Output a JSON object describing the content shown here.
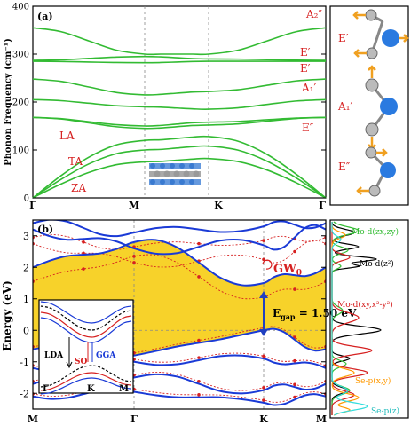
{
  "chart_data": [
    {
      "type": "line",
      "panel_label": "(a)",
      "ylabel": "Phonon Frequency (cm⁻¹)",
      "ylim": [
        0,
        400
      ],
      "yticks": [
        "0",
        "100",
        "200",
        "300",
        "400"
      ],
      "k_path": [
        "Γ",
        "M",
        "K",
        "Γ"
      ],
      "color": "#33bb33",
      "grid": false,
      "branches": [
        {
          "label": "ZA",
          "values": [
            0,
            75,
            82,
            0
          ]
        },
        {
          "label": "TA",
          "values": [
            0,
            100,
            108,
            0
          ]
        },
        {
          "label": "LA",
          "values": [
            0,
            120,
            128,
            0
          ]
        },
        {
          "label": "",
          "values": [
            168,
            145,
            152,
            168
          ]
        },
        {
          "label": "E″",
          "values": [
            168,
            150,
            158,
            168
          ]
        },
        {
          "label": "",
          "values": [
            205,
            190,
            185,
            205
          ]
        },
        {
          "label": "A₁′",
          "values": [
            248,
            215,
            222,
            248
          ]
        },
        {
          "label": "E′",
          "values": [
            285,
            282,
            285,
            285
          ]
        },
        {
          "label": "",
          "values": [
            287,
            295,
            290,
            287
          ]
        },
        {
          "label": "A₂″",
          "values": [
            355,
            300,
            300,
            355
          ]
        }
      ],
      "branch_labels": [
        "A₂″",
        "E′",
        "E′",
        "A₁′",
        "E″",
        "LA",
        "TA",
        "ZA"
      ]
    },
    {
      "type": "line",
      "panel_label": "(b)",
      "ylabel": "Energy (eV)",
      "ylim": [
        -2.5,
        3.5
      ],
      "yticks": [
        "-2",
        "-1",
        "0",
        "1",
        "2",
        "3"
      ],
      "k_path": [
        "M",
        "Γ",
        "K",
        "M"
      ],
      "gap_annotation": "E",
      "gap_sub": "gap",
      "gap_value": " = 1.50 eV",
      "gap_eV": 1.5,
      "gw_label": "GW",
      "gw_sub": "0",
      "shading_color": "#f7d22a",
      "band_color": "#1a3ad6",
      "dft_color": "#d62020",
      "conduction_bands": [
        {
          "values": [
            2.0,
            2.8,
            1.5,
            2.0
          ]
        },
        {
          "values": [
            3.2,
            2.6,
            2.7,
            3.2
          ]
        },
        {
          "values": [
            3.4,
            3.1,
            3.3,
            3.4
          ]
        }
      ],
      "valence_bands": [
        {
          "values": [
            -0.6,
            -0.8,
            0.0,
            -0.6
          ]
        },
        {
          "values": [
            -1.2,
            -1.0,
            -0.9,
            -1.2
          ]
        },
        {
          "values": [
            -1.7,
            -1.5,
            -1.9,
            -1.7
          ]
        },
        {
          "values": [
            -2.1,
            -1.95,
            -2.3,
            -2.1
          ]
        }
      ]
    },
    {
      "type": "line",
      "panel_label": "inset",
      "k_path": [
        "Γ",
        "K",
        "M"
      ],
      "labels": [
        "LDA",
        "SO",
        "GGA"
      ],
      "series": [
        {
          "name": "LDA",
          "color": "#000000"
        },
        {
          "name": "SO",
          "color": "#d62020"
        },
        {
          "name": "GGA",
          "color": "#1a3ad6"
        }
      ]
    },
    {
      "type": "line",
      "panel_label": "PDOS",
      "series": [
        {
          "name": "Mo-d(zx,zy)",
          "color": "#33bb33"
        },
        {
          "name": "Mo-d(z²)",
          "color": "#000000"
        },
        {
          "name": "Mo-d(xy,x²-y²)",
          "color": "#d62020"
        },
        {
          "name": "Se-p(x,y)",
          "color": "#ff9900"
        },
        {
          "name": "Se-p(z)",
          "color": "#33dddd"
        }
      ]
    }
  ],
  "modes": [
    "E′",
    "A₁′",
    "E″"
  ]
}
